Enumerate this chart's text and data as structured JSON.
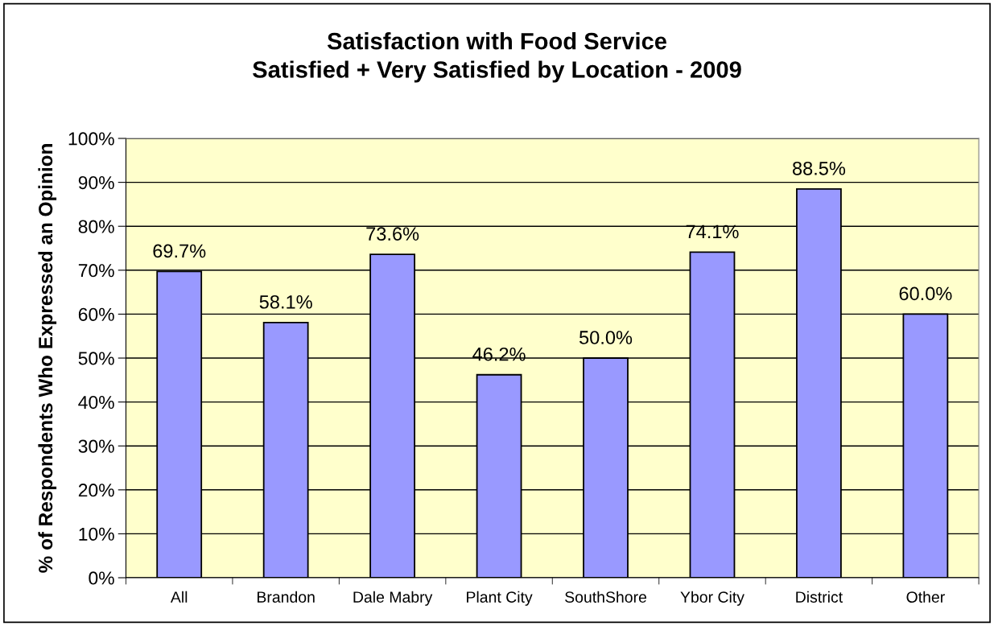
{
  "chart_data": {
    "type": "bar",
    "title": "Satisfaction with Food Service",
    "subtitle": "Satisfied + Very Satisfied by Location - 2009",
    "ylabel": "% of Respondents Who Expressed an Opinion",
    "categories": [
      "All",
      "Brandon",
      "Dale Mabry",
      "Plant City",
      "SouthShore",
      "Ybor City",
      "District",
      "Other"
    ],
    "values": [
      69.7,
      58.1,
      73.6,
      46.2,
      50.0,
      74.1,
      88.5,
      60.0
    ],
    "value_labels": [
      "69.7%",
      "58.1%",
      "73.6%",
      "46.2%",
      "50.0%",
      "74.1%",
      "88.5%",
      "60.0%"
    ],
    "color": "#9999ff",
    "ylim": [
      0,
      100
    ],
    "yticks": [
      {
        "value": 0,
        "label": "0%"
      },
      {
        "value": 10,
        "label": "10%"
      },
      {
        "value": 20,
        "label": "20%"
      },
      {
        "value": 30,
        "label": "30%"
      },
      {
        "value": 40,
        "label": "40%"
      },
      {
        "value": 50,
        "label": "50%"
      },
      {
        "value": 60,
        "label": "60%"
      },
      {
        "value": 70,
        "label": "70%"
      },
      {
        "value": 80,
        "label": "80%"
      },
      {
        "value": 90,
        "label": "90%"
      },
      {
        "value": 100,
        "label": "100%"
      }
    ],
    "grid": "y"
  }
}
